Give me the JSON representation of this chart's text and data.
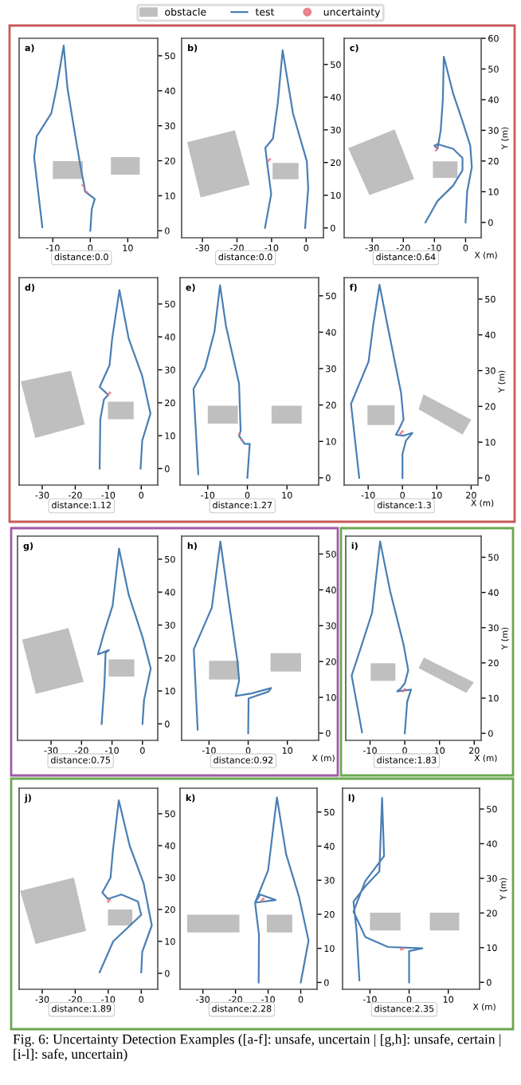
{
  "chart_data": [
    {
      "type": "line",
      "title": "a)",
      "annotations": [
        "distance:0.0"
      ],
      "legend": "top",
      "xlim": [
        -19,
        18
      ],
      "ylim": [
        -2,
        55
      ],
      "xticks": [
        -10,
        0,
        10
      ],
      "yticks": [
        0,
        10,
        20,
        30,
        40,
        50
      ],
      "series": [
        {
          "name": "obstacle",
          "type": "area",
          "color": "#bfbfbf",
          "x": [
            -10,
            -2,
            -2,
            -10
          ],
          "values": [
            14.8,
            14.8,
            19.9,
            19.9
          ]
        },
        {
          "type": "area",
          "color": "#bfbfbf",
          "x": [
            5.5,
            13.2,
            13.2,
            5.5
          ],
          "values": [
            16,
            16,
            21,
            21
          ]
        },
        {
          "name": "test",
          "type": "line",
          "color": "#4a7fb5",
          "x": [
            -12.8,
            -15,
            -14.3,
            -10.4,
            -9,
            -7.1,
            -6.1,
            -3.9,
            -2.5,
            -1.7,
            -1.4,
            1.2,
            0.4,
            0
          ],
          "values": [
            1,
            21,
            27,
            33.6,
            40.8,
            52.9,
            40.8,
            26.4,
            17.7,
            13.4,
            11.2,
            9.1,
            6.2,
            0
          ]
        },
        {
          "name": "uncertainty",
          "type": "scatter",
          "color": "#e8707a",
          "x": [
            -2,
            -1.5,
            -1
          ],
          "values": [
            13,
            12,
            11
          ]
        }
      ]
    },
    {
      "type": "line",
      "title": "b)",
      "annotations": [
        "distance:0.0"
      ],
      "xlim": [
        -36,
        5
      ],
      "ylim": [
        -3,
        58
      ],
      "xticks": [
        -30,
        -20,
        -10,
        0
      ],
      "yticks": [
        0,
        10,
        20,
        30,
        40,
        50
      ],
      "series": [
        {
          "type": "area",
          "color": "#bfbfbf",
          "x": [
            -34.4,
            -20.6,
            -16.3,
            -30.5
          ],
          "values": [
            26.2,
            29.9,
            13.2,
            9.3
          ]
        },
        {
          "type": "area",
          "color": "#bfbfbf",
          "x": [
            -9.7,
            -2.2,
            -2.2,
            -9.7
          ],
          "values": [
            14.9,
            14.9,
            19.9,
            19.9
          ]
        },
        {
          "type": "line",
          "color": "#4a7fb5",
          "x": [
            -11.9,
            -10.1,
            -11.3,
            -11.8,
            -9.6,
            -8.2,
            -6.8,
            -3.8,
            0.2,
            0.6,
            -0.3
          ],
          "values": [
            0,
            10.4,
            20,
            24.5,
            27.3,
            38.2,
            54.3,
            35,
            20.4,
            12.1,
            0
          ]
        },
        {
          "type": "scatter",
          "color": "#e8707a",
          "x": [
            -10.5,
            -11
          ],
          "values": [
            21,
            20.5
          ]
        }
      ]
    },
    {
      "type": "line",
      "title": "c)",
      "xlabel": "X (m)",
      "ylabel": "Y (m)",
      "annotations": [
        "distance:0.64"
      ],
      "xlim": [
        -39,
        5
      ],
      "ylim": [
        -5,
        60
      ],
      "xticks": [
        -30,
        -20,
        -10,
        0
      ],
      "yticks": [
        0,
        10,
        20,
        30,
        40,
        50,
        60
      ],
      "series": [
        {
          "type": "area",
          "color": "#bfbfbf",
          "x": [
            -37.7,
            -22.8,
            -16.5,
            -30.9
          ],
          "values": [
            24.2,
            30.3,
            14.1,
            8.9
          ]
        },
        {
          "type": "area",
          "color": "#bfbfbf",
          "x": [
            -10.5,
            -2.6,
            -2.6,
            -10.5
          ],
          "values": [
            14.5,
            14.5,
            19.9,
            19.9
          ]
        },
        {
          "type": "line",
          "color": "#4a7fb5",
          "x": [
            -12.9,
            -9,
            -4,
            -1,
            -1,
            -4,
            -9,
            -10,
            -9,
            -8,
            -7.3,
            -7,
            -4,
            -1,
            1.5,
            2,
            0.5,
            0
          ],
          "values": [
            0,
            7,
            12,
            17,
            21,
            24,
            25.5,
            25,
            24,
            30,
            40,
            54,
            42,
            33,
            25,
            18,
            10,
            0
          ]
        },
        {
          "type": "scatter",
          "color": "#e8707a",
          "x": [
            -9.5,
            -9
          ],
          "values": [
            23.5,
            24.5
          ]
        }
      ]
    },
    {
      "type": "line",
      "title": "d)",
      "annotations": [
        "distance:1.12"
      ],
      "xlim": [
        -37,
        5
      ],
      "ylim": [
        -5,
        58
      ],
      "xticks": [
        -30,
        -20,
        -10,
        0
      ],
      "yticks": [
        0,
        10,
        20,
        30,
        40,
        50
      ],
      "series": [
        {
          "type": "area",
          "color": "#bfbfbf",
          "x": [
            -36.5,
            -21.3,
            -17.1,
            -32.1
          ],
          "values": [
            26.5,
            29.7,
            13.4,
            9.3
          ]
        },
        {
          "type": "area",
          "color": "#bfbfbf",
          "x": [
            -10.1,
            -2.3,
            -2.3,
            -10.1
          ],
          "values": [
            15,
            15,
            20.3,
            20.3
          ]
        },
        {
          "type": "line",
          "color": "#4a7fb5",
          "x": [
            -12.6,
            -12.4,
            -11.3,
            -10,
            -12.6,
            -9.6,
            -8.8,
            -6.6,
            -3.8,
            0.3,
            2.8,
            0.3,
            -0.2
          ],
          "values": [
            0,
            15,
            21,
            22.4,
            24.8,
            31.4,
            39.5,
            54.2,
            39.5,
            28.1,
            16.7,
            8.5,
            0
          ]
        },
        {
          "type": "scatter",
          "color": "#e8707a",
          "x": [
            -10,
            -9.5
          ],
          "values": [
            22.4,
            23
          ]
        }
      ]
    },
    {
      "type": "line",
      "title": "e)",
      "annotations": [
        "distance:1.27"
      ],
      "xlim": [
        -17,
        18
      ],
      "ylim": [
        -2,
        55
      ],
      "xticks": [
        -10,
        0,
        10
      ],
      "yticks": [
        0,
        10,
        20,
        30,
        40,
        50
      ],
      "series": [
        {
          "type": "area",
          "color": "#bfbfbf",
          "x": [
            -10,
            -2.4,
            -2.4,
            -10
          ],
          "values": [
            14.9,
            14.9,
            19.8,
            19.8
          ]
        },
        {
          "type": "area",
          "color": "#bfbfbf",
          "x": [
            6.1,
            13.7,
            13.7,
            6.1
          ],
          "values": [
            14.9,
            14.9,
            19.8,
            19.8
          ]
        },
        {
          "type": "line",
          "color": "#4a7fb5",
          "x": [
            -12.4,
            -13.6,
            -10.7,
            -8.3,
            -6.9,
            -5.4,
            -2.1,
            -1.7,
            -2.1,
            -0.7,
            0.6,
            0
          ],
          "values": [
            1,
            24.4,
            30.2,
            40.2,
            52.9,
            41.7,
            25.9,
            12.9,
            11.5,
            9.3,
            9.3,
            0
          ]
        },
        {
          "type": "scatter",
          "color": "#e8707a",
          "x": [
            -2,
            -1.5
          ],
          "values": [
            12,
            10.5
          ]
        }
      ]
    },
    {
      "type": "line",
      "title": "f)",
      "xlabel": "X (m)",
      "ylabel": "Y (m)",
      "annotations": [
        "distance:1.3"
      ],
      "xlim": [
        -17,
        22
      ],
      "ylim": [
        -2,
        56
      ],
      "xticks": [
        -10,
        0,
        10,
        20
      ],
      "yticks": [
        0,
        10,
        20,
        30,
        40,
        50
      ],
      "series": [
        {
          "type": "area",
          "color": "#bfbfbf",
          "x": [
            -10.2,
            -2.3,
            -2.3,
            -10.2
          ],
          "values": [
            14.8,
            14.8,
            20.3,
            20.3
          ]
        },
        {
          "type": "area",
          "color": "#bfbfbf",
          "x": [
            6.1,
            20,
            17.5,
            4.7
          ],
          "values": [
            23.4,
            16.3,
            12.1,
            19.2
          ]
        },
        {
          "type": "line",
          "color": "#4a7fb5",
          "x": [
            -12.6,
            -15,
            -9.9,
            -8.5,
            -6.7,
            -4.1,
            -0.4,
            0.3,
            -1.2,
            -1.9,
            0.3,
            2.9,
            1,
            0,
            0
          ],
          "values": [
            0,
            20.7,
            32.5,
            42.9,
            54,
            41.4,
            23.7,
            16.3,
            13.3,
            12.1,
            11.8,
            12.6,
            10.4,
            6.7,
            0
          ]
        },
        {
          "type": "scatter",
          "color": "#e8707a",
          "x": [
            -0.5,
            0
          ],
          "values": [
            12.5,
            13
          ]
        }
      ]
    },
    {
      "type": "line",
      "title": "g)",
      "annotations": [
        "distance:0.75"
      ],
      "xlim": [
        -41,
        5
      ],
      "ylim": [
        -5,
        57
      ],
      "xticks": [
        -30,
        -20,
        -10,
        0
      ],
      "yticks": [
        0,
        10,
        20,
        30,
        40,
        50
      ],
      "series": [
        {
          "type": "area",
          "color": "#bfbfbf",
          "x": [
            -39.5,
            -24.3,
            -19.3,
            -35
          ],
          "values": [
            25.6,
            29.1,
            12.8,
            9.1
          ]
        },
        {
          "type": "area",
          "color": "#bfbfbf",
          "x": [
            -11.1,
            -2.7,
            -2.7,
            -11.1
          ],
          "values": [
            14.4,
            14.4,
            19.6,
            19.6
          ]
        },
        {
          "type": "line",
          "color": "#4a7fb5",
          "x": [
            -13.4,
            -12.5,
            -12.1,
            -11,
            -14.6,
            -12.5,
            -9.8,
            -7.7,
            -4.5,
            0,
            2.7,
            0.5,
            0
          ],
          "values": [
            0,
            12,
            21.6,
            22.4,
            21.1,
            28,
            35.9,
            53.2,
            39.1,
            26.4,
            16.8,
            7.2,
            0
          ]
        }
      ]
    },
    {
      "type": "line",
      "title": "h)",
      "xlabel": "X (m)",
      "annotations": [
        "distance:0.92"
      ],
      "xlim": [
        -17,
        18
      ],
      "ylim": [
        -2,
        55
      ],
      "xticks": [
        -10,
        0,
        10
      ],
      "yticks": [
        0,
        10,
        20,
        30,
        40,
        50
      ],
      "series": [
        {
          "type": "area",
          "color": "#bfbfbf",
          "x": [
            -10,
            -2.3,
            -2.3,
            -10
          ],
          "values": [
            15,
            15,
            20.2,
            20.2
          ]
        },
        {
          "type": "area",
          "color": "#bfbfbf",
          "x": [
            5.7,
            13.5,
            13.5,
            5.7
          ],
          "values": [
            17.2,
            17.2,
            22.3,
            22.3
          ]
        },
        {
          "type": "line",
          "color": "#4a7fb5",
          "x": [
            -12.9,
            -13.9,
            -12.2,
            -9.3,
            -7.1,
            -4.9,
            -2.8,
            -2.3,
            -3.2,
            0.9,
            5.9,
            5.2,
            0.1,
            0
          ],
          "values": [
            1,
            23.4,
            27.7,
            35,
            53.5,
            36.4,
            20.5,
            14.7,
            10.4,
            11.1,
            12.6,
            11.6,
            9.7,
            0
          ]
        }
      ]
    },
    {
      "type": "line",
      "title": "i)",
      "xlabel": "X (m)",
      "ylabel": "Y (m)",
      "annotations": [
        "distance:1.83"
      ],
      "xlim": [
        -17,
        22
      ],
      "ylim": [
        -2,
        56
      ],
      "xticks": [
        -10,
        0,
        10,
        20
      ],
      "yticks": [
        0,
        10,
        20,
        30,
        40,
        50
      ],
      "series": [
        {
          "type": "area",
          "color": "#bfbfbf",
          "x": [
            -9.8,
            -2.7,
            -2.7,
            -9.8
          ],
          "values": [
            14.9,
            14.9,
            19.9,
            19.9
          ]
        },
        {
          "type": "area",
          "color": "#bfbfbf",
          "x": [
            5.5,
            19.9,
            17.7,
            4
          ],
          "values": [
            21.5,
            14.5,
            11.5,
            18.5
          ]
        },
        {
          "type": "line",
          "color": "#4a7fb5",
          "x": [
            -12.3,
            -15.3,
            -12.3,
            -9.4,
            -7.1,
            -4.2,
            -0.4,
            1,
            0,
            -1.2,
            -2.2,
            1.8,
            0.7,
            0
          ],
          "values": [
            0.3,
            16.4,
            25.4,
            34.3,
            54.5,
            40.3,
            25.4,
            17.9,
            14.2,
            12.7,
            11.9,
            12.4,
            9,
            0
          ]
        },
        {
          "type": "scatter",
          "color": "#e8707a",
          "x": [
            -0.5,
            0
          ],
          "values": [
            12,
            12.5
          ]
        }
      ]
    },
    {
      "type": "line",
      "title": "j)",
      "annotations": [
        "distance:1.89"
      ],
      "xlim": [
        -37,
        5
      ],
      "ylim": [
        -5,
        58
      ],
      "xticks": [
        -30,
        -20,
        -10,
        0
      ],
      "yticks": [
        0,
        10,
        20,
        30,
        40,
        50
      ],
      "series": [
        {
          "type": "area",
          "color": "#bfbfbf",
          "x": [
            -36.7,
            -20.4,
            -16.7,
            -32
          ],
          "values": [
            25.8,
            30,
            13.3,
            9.2
          ]
        },
        {
          "type": "area",
          "color": "#bfbfbf",
          "x": [
            -10.1,
            -2.7,
            -2.7,
            -10.1
          ],
          "values": [
            15,
            15,
            20,
            20
          ]
        },
        {
          "type": "line",
          "color": "#4a7fb5",
          "x": [
            -12.6,
            -8.5,
            0,
            -1,
            -6,
            -10.1,
            -11.8,
            -9.3,
            -8.6,
            -6.8,
            -3.5,
            0.7,
            3.2,
            0.3,
            0
          ],
          "values": [
            0.3,
            10,
            18.3,
            22.5,
            24.7,
            23.3,
            25.3,
            30,
            38.3,
            54.2,
            40,
            28.3,
            15,
            6.7,
            0.3
          ]
        },
        {
          "type": "scatter",
          "color": "#e8707a",
          "x": [
            -9.5,
            -10
          ],
          "values": [
            23,
            22.5
          ]
        }
      ]
    },
    {
      "type": "line",
      "title": "k)",
      "annotations": [
        "distance:2.28"
      ],
      "xlim": [
        -37,
        5
      ],
      "ylim": [
        -2,
        57
      ],
      "xticks": [
        -30,
        -20,
        -10,
        0
      ],
      "yticks": [
        0,
        10,
        20,
        30,
        40,
        50
      ],
      "series": [
        {
          "type": "area",
          "color": "#bfbfbf",
          "x": [
            -34.8,
            -18.8,
            -18.8,
            -34.8
          ],
          "values": [
            14.7,
            14.7,
            19.9,
            19.9
          ]
        },
        {
          "type": "area",
          "color": "#bfbfbf",
          "x": [
            -10.4,
            -2.6,
            -2.6,
            -10.4
          ],
          "values": [
            14.7,
            14.7,
            19.9,
            19.9
          ]
        },
        {
          "type": "line",
          "color": "#4a7fb5",
          "x": [
            -12.9,
            -12.8,
            -14,
            -12.4,
            -7.7,
            -14,
            -10,
            -7.3,
            -4.5,
            -0.5,
            2.4,
            0
          ],
          "values": [
            0,
            13.9,
            23.4,
            25.8,
            24.2,
            23.4,
            32.9,
            54.3,
            37.7,
            25,
            12.3,
            0
          ]
        },
        {
          "type": "scatter",
          "color": "#e8707a",
          "x": [
            -11.5,
            -12
          ],
          "values": [
            24.5,
            24
          ]
        }
      ]
    },
    {
      "type": "line",
      "title": "l)",
      "xlabel": "X (m)",
      "ylabel": "Y (m)",
      "annotations": [
        "distance:2.35",
        "Fig. 6: Uncertainty Detection Examples ([a-f]: unsafe, uncertain | [g,h]: unsafe, certain | [i-l]: safe, uncertain)"
      ],
      "xlim": [
        -17,
        18
      ],
      "ylim": [
        -2,
        56
      ],
      "xticks": [
        -10,
        0,
        10
      ],
      "yticks": [
        0,
        10,
        20,
        30,
        40,
        50
      ],
      "series": [
        {
          "type": "area",
          "color": "#bfbfbf",
          "x": [
            -10,
            -2.2,
            -2.2,
            -10
          ],
          "values": [
            15,
            15,
            20.1,
            20.1
          ]
        },
        {
          "type": "area",
          "color": "#bfbfbf",
          "x": [
            5.3,
            12.8,
            12.8,
            5.3
          ],
          "values": [
            15,
            15,
            20.1,
            20.1
          ]
        },
        {
          "type": "line",
          "color": "#4a7fb5",
          "x": [
            -12.7,
            -13.4,
            -14.2,
            -11.2,
            -7.6,
            -6.9,
            -6.4,
            -11.2,
            -14.2,
            -11.2,
            -5.4,
            1.9,
            3.4,
            0,
            0
          ],
          "values": [
            0.6,
            14.6,
            23.3,
            27.7,
            32,
            53.2,
            36.4,
            29.2,
            20.4,
            13.1,
            10.2,
            9.9,
            9.8,
            9,
            0
          ]
        },
        {
          "type": "scatter",
          "color": "#e8707a",
          "x": [
            -2,
            -1.5
          ],
          "values": [
            9.5,
            9.8
          ]
        }
      ]
    }
  ]
}
